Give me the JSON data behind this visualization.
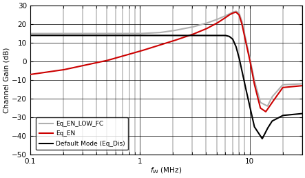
{
  "title": "",
  "xlabel": "$f_{IN}$ (MHz)",
  "ylabel": "Channel Gain (dB)",
  "xlim": [
    0.1,
    30
  ],
  "ylim": [
    -50,
    30
  ],
  "yticks": [
    -50,
    -40,
    -30,
    -20,
    -10,
    0,
    10,
    20,
    30
  ],
  "background_color": "#ffffff",
  "grid_color": "#000000",
  "line_colors": {
    "default": "#000000",
    "eq_en": "#cc0000",
    "eq_en_low_fc": "#b0b0b0"
  },
  "default_pts_f": [
    0.1,
    5.5,
    6.0,
    6.5,
    7.0,
    7.5,
    8.0,
    8.5,
    9.0,
    10.0,
    11.0,
    13.0,
    14.5,
    16.0,
    20.0,
    30.0
  ],
  "default_pts_g": [
    14.0,
    14.0,
    14.0,
    13.5,
    12.0,
    8.0,
    2.0,
    -5.0,
    -12.0,
    -24.0,
    -35.0,
    -41.5,
    -36.0,
    -32.0,
    -29.0,
    -28.0
  ],
  "eq_en_pts_f": [
    0.1,
    0.2,
    0.5,
    1.0,
    2.0,
    3.0,
    4.0,
    5.0,
    6.0,
    6.5,
    7.0,
    7.5,
    8.0,
    8.5,
    9.0,
    10.0,
    11.0,
    12.5,
    14.0,
    16.0,
    20.0,
    30.0
  ],
  "eq_en_pts_g": [
    -7.0,
    -4.5,
    0.5,
    5.5,
    11.0,
    14.5,
    17.5,
    20.5,
    23.5,
    25.0,
    26.0,
    26.5,
    25.0,
    20.0,
    13.0,
    1.0,
    -12.0,
    -25.0,
    -27.0,
    -22.0,
    -14.0,
    -13.0
  ],
  "eq_low_pts_f": [
    0.1,
    0.5,
    1.0,
    1.5,
    2.0,
    3.0,
    4.0,
    5.0,
    6.0,
    6.5,
    7.0,
    7.5,
    8.0,
    8.5,
    9.0,
    10.0,
    11.0,
    12.5,
    14.5,
    16.0,
    20.0,
    30.0
  ],
  "eq_low_pts_g": [
    15.0,
    15.0,
    15.0,
    15.5,
    16.5,
    18.5,
    20.5,
    22.5,
    24.5,
    25.5,
    26.5,
    27.0,
    26.0,
    21.5,
    14.5,
    2.0,
    -10.0,
    -22.0,
    -24.0,
    -19.0,
    -12.5,
    -12.0
  ],
  "legend_labels": [
    "Default Mode (Eq_Dis)",
    "Eq_EN",
    "Eq_EN_LOW_FC"
  ],
  "legend_colors": [
    "#000000",
    "#cc0000",
    "#b0b0b0"
  ]
}
